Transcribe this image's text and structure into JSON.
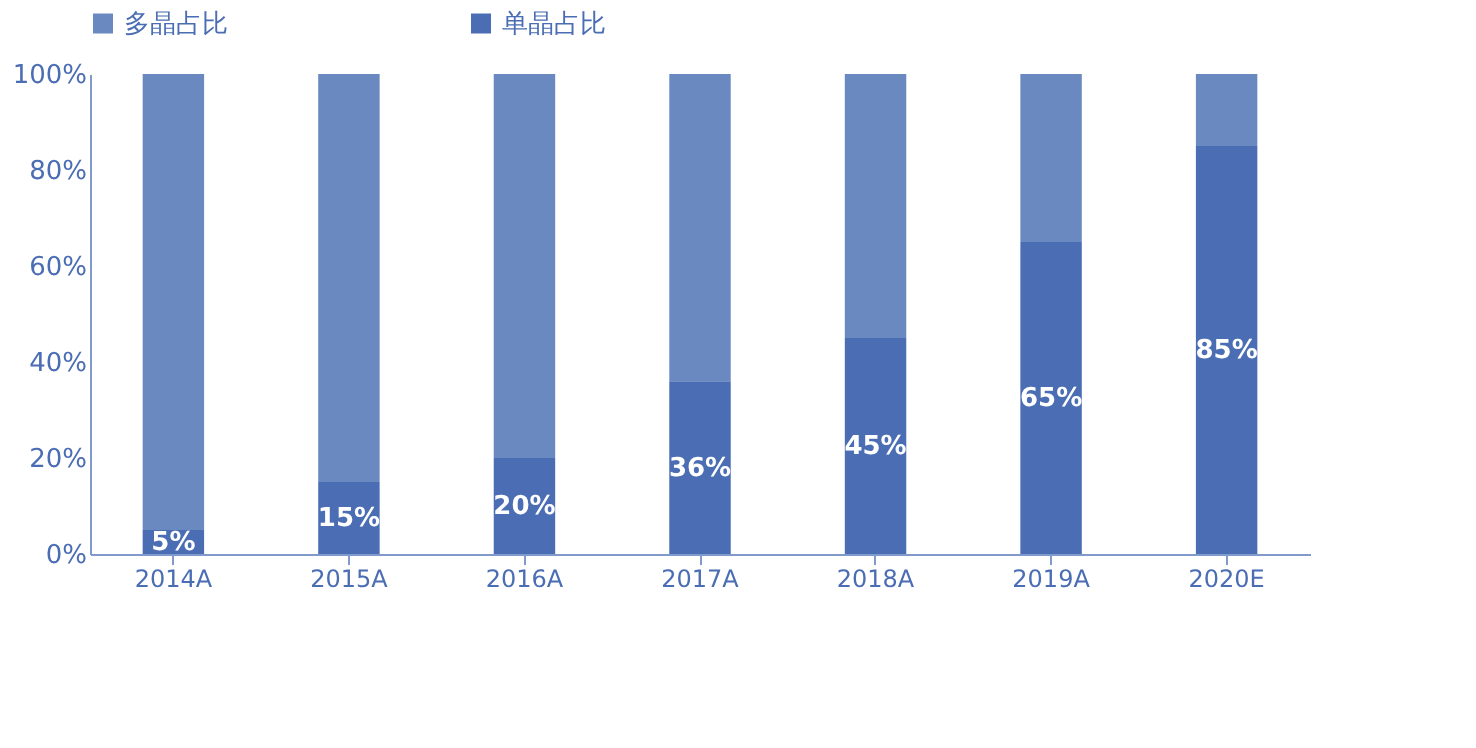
{
  "chart_data": {
    "type": "bar",
    "stacked": true,
    "legend": "top",
    "grid": false,
    "categories": [
      "2014A",
      "2015A",
      "2016A",
      "2017A",
      "2018A",
      "2019A",
      "2020E"
    ],
    "series": [
      {
        "name": "单晶占比",
        "color": "#4a6db3",
        "values": [
          5,
          15,
          20,
          36,
          45,
          65,
          85
        ],
        "value_labels": [
          "5%",
          "15%",
          "20%",
          "36%",
          "45%",
          "65%",
          "85%"
        ]
      },
      {
        "name": "多晶占比",
        "color": "#6a89c1",
        "values": [
          95,
          85,
          80,
          64,
          55,
          35,
          15
        ]
      }
    ],
    "ylim": [
      0,
      100
    ],
    "yticks": [
      {
        "value": 0,
        "label": "0%"
      },
      {
        "value": 20,
        "label": "20%"
      },
      {
        "value": 40,
        "label": "40%"
      },
      {
        "value": 60,
        "label": "60%"
      },
      {
        "value": 80,
        "label": "80%"
      },
      {
        "value": 100,
        "label": "100%"
      }
    ]
  }
}
